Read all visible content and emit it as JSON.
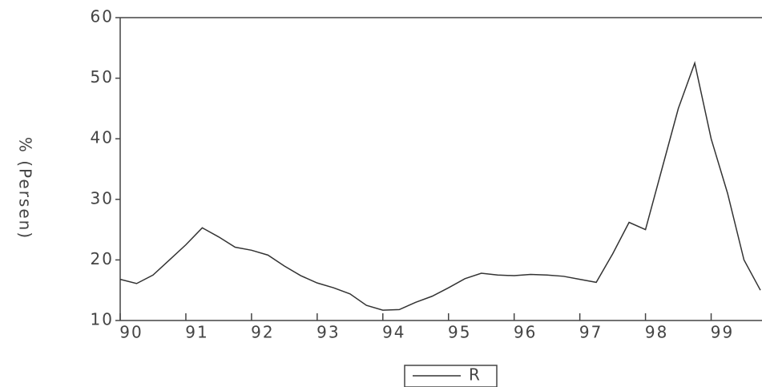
{
  "chart_data": {
    "type": "line",
    "y_label": "% (Persen)",
    "x": [
      90,
      90.25,
      90.5,
      90.75,
      91,
      91.25,
      91.5,
      91.75,
      92,
      92.25,
      92.5,
      92.75,
      93,
      93.25,
      93.5,
      93.75,
      94,
      94.25,
      94.5,
      94.75,
      95,
      95.25,
      95.5,
      95.75,
      96,
      96.25,
      96.5,
      96.75,
      97,
      97.25,
      97.5,
      97.75,
      98,
      98.25,
      98.5,
      98.75,
      99,
      99.25,
      99.5,
      99.75
    ],
    "series": [
      {
        "name": "R",
        "color": "#333333",
        "values": [
          16.8,
          16.1,
          17.5,
          20.0,
          22.5,
          25.3,
          23.8,
          22.1,
          21.6,
          20.8,
          19.0,
          17.4,
          16.2,
          15.4,
          14.4,
          12.5,
          11.7,
          11.8,
          13.0,
          14.0,
          15.4,
          16.9,
          17.8,
          17.5,
          17.4,
          17.6,
          17.5,
          17.3,
          16.8,
          16.3,
          21.0,
          26.2,
          25.0,
          35.0,
          45.0,
          52.5,
          40.0,
          31.0,
          20.0,
          15.0
        ]
      }
    ],
    "xlim": [
      90,
      99.75
    ],
    "xticks": [
      90,
      91,
      92,
      93,
      94,
      95,
      96,
      97,
      98,
      99
    ],
    "ylim": [
      10,
      60
    ],
    "yticks": [
      10,
      20,
      30,
      40,
      50,
      60
    ],
    "grid": false
  }
}
